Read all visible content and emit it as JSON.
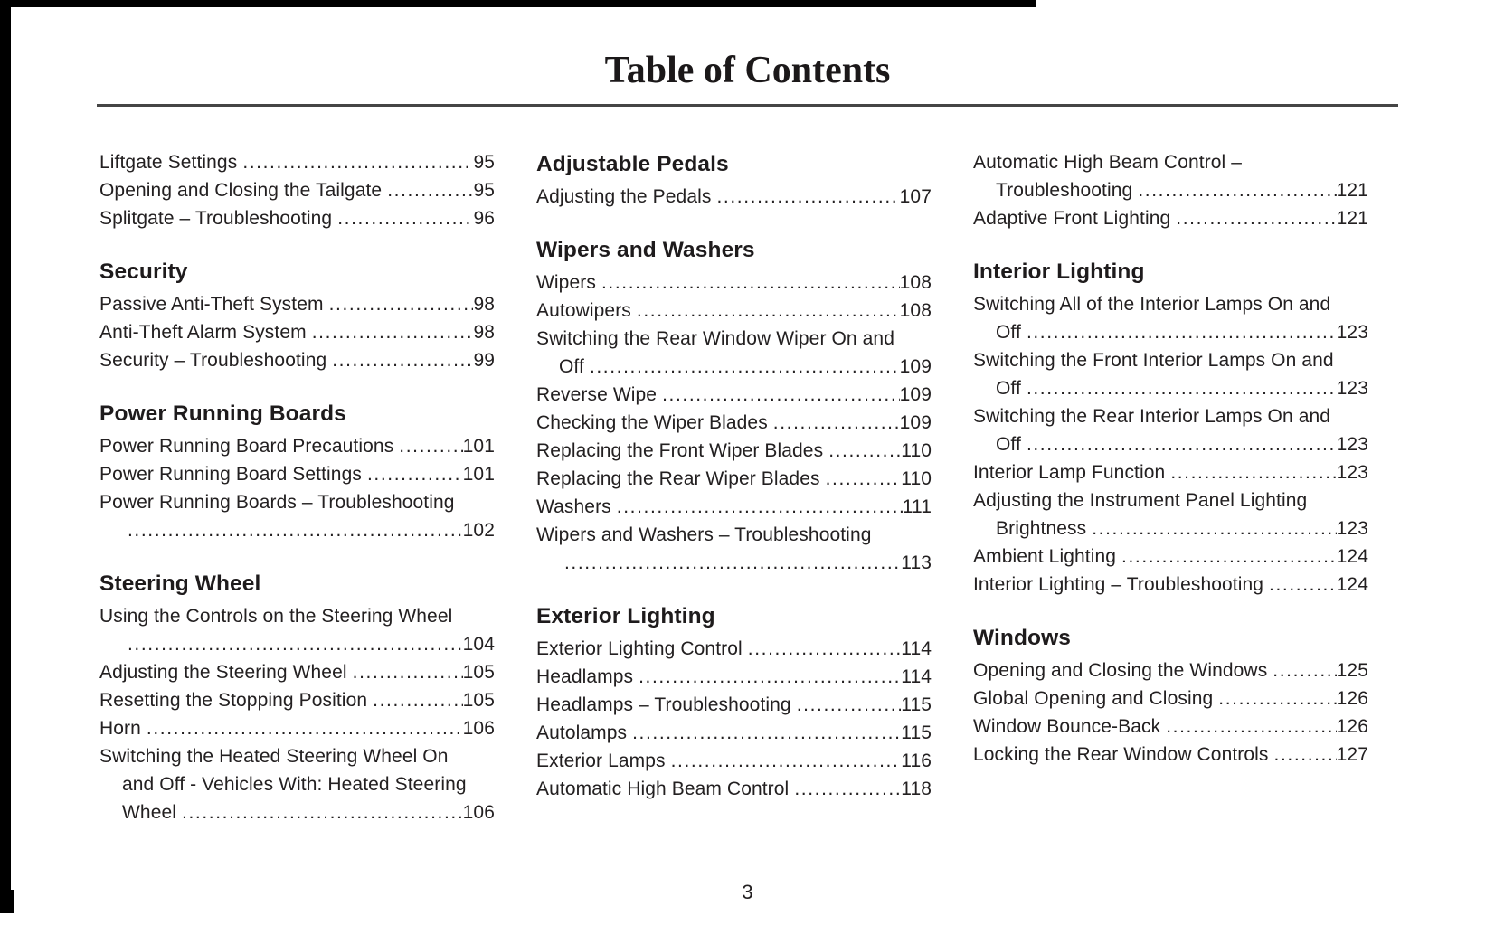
{
  "page": {
    "title": "Table of Contents",
    "page_number": "3"
  },
  "columns": [
    {
      "blocks": [
        {
          "heading": null,
          "rows": [
            {
              "t": "Liftgate Settings",
              "p": "95"
            },
            {
              "t": "Opening and Closing the Tailgate",
              "p": "95"
            },
            {
              "t": "Splitgate – Troubleshooting",
              "p": "96"
            }
          ]
        },
        {
          "heading": "Security",
          "rows": [
            {
              "t": "Passive Anti-Theft System",
              "p": "98"
            },
            {
              "t": "Anti-Theft Alarm System",
              "p": "98"
            },
            {
              "t": "Security – Troubleshooting",
              "p": "99"
            }
          ]
        },
        {
          "heading": "Power Running Boards",
          "rows": [
            {
              "t": "Power Running Board Precautions",
              "p": "101"
            },
            {
              "t": "Power Running Board Settings",
              "p": "101"
            },
            {
              "t": "Power Running Boards – Troubleshooting"
            },
            {
              "t": "",
              "p": "102",
              "i": true
            }
          ]
        },
        {
          "heading": "Steering Wheel",
          "rows": [
            {
              "t": "Using the Controls on the Steering Wheel"
            },
            {
              "t": "",
              "p": "104",
              "i": true
            },
            {
              "t": "Adjusting the Steering Wheel",
              "p": "105"
            },
            {
              "t": "Resetting the Stopping Position",
              "p": "105"
            },
            {
              "t": "Horn",
              "p": "106"
            },
            {
              "t": "Switching the Heated Steering Wheel On"
            },
            {
              "t": "and Off - Vehicles With: Heated Steering",
              "i": true
            },
            {
              "t": "Wheel",
              "p": "106",
              "i": true
            }
          ]
        }
      ]
    },
    {
      "blocks": [
        {
          "heading": "Adjustable Pedals",
          "rows": [
            {
              "t": "Adjusting the Pedals",
              "p": "107"
            }
          ]
        },
        {
          "heading": "Wipers and Washers",
          "rows": [
            {
              "t": "Wipers",
              "p": "108"
            },
            {
              "t": "Autowipers",
              "p": "108"
            },
            {
              "t": "Switching the Rear Window Wiper On and"
            },
            {
              "t": "Off",
              "p": "109",
              "i": true
            },
            {
              "t": "Reverse Wipe",
              "p": "109"
            },
            {
              "t": "Checking the Wiper Blades",
              "p": "109"
            },
            {
              "t": "Replacing the Front Wiper Blades",
              "p": "110"
            },
            {
              "t": "Replacing the Rear Wiper Blades",
              "p": "110"
            },
            {
              "t": "Washers",
              "p": "111"
            },
            {
              "t": "Wipers and Washers – Troubleshooting"
            },
            {
              "t": "",
              "p": "113",
              "i": true
            }
          ]
        },
        {
          "heading": "Exterior Lighting",
          "rows": [
            {
              "t": "Exterior Lighting Control",
              "p": "114"
            },
            {
              "t": "Headlamps",
              "p": "114"
            },
            {
              "t": "Headlamps – Troubleshooting",
              "p": "115"
            },
            {
              "t": "Autolamps",
              "p": "115"
            },
            {
              "t": "Exterior Lamps",
              "p": "116"
            },
            {
              "t": "Automatic High Beam Control",
              "p": "118"
            }
          ]
        }
      ]
    },
    {
      "blocks": [
        {
          "heading": null,
          "rows": [
            {
              "t": "Automatic High Beam Control –"
            },
            {
              "t": "Troubleshooting",
              "p": "121",
              "i": true
            },
            {
              "t": "Adaptive Front Lighting",
              "p": "121"
            }
          ]
        },
        {
          "heading": "Interior Lighting",
          "rows": [
            {
              "t": "Switching All of the Interior Lamps On and"
            },
            {
              "t": "Off",
              "p": "123",
              "i": true
            },
            {
              "t": "Switching the Front Interior Lamps On and"
            },
            {
              "t": "Off",
              "p": "123",
              "i": true
            },
            {
              "t": "Switching the Rear Interior Lamps On and"
            },
            {
              "t": "Off",
              "p": "123",
              "i": true
            },
            {
              "t": "Interior Lamp Function",
              "p": "123"
            },
            {
              "t": "Adjusting the Instrument Panel Lighting"
            },
            {
              "t": "Brightness",
              "p": "123",
              "i": true
            },
            {
              "t": "Ambient Lighting",
              "p": "124"
            },
            {
              "t": "Interior Lighting – Troubleshooting",
              "p": "124"
            }
          ]
        },
        {
          "heading": "Windows",
          "rows": [
            {
              "t": "Opening and Closing the Windows",
              "p": "125"
            },
            {
              "t": "Global Opening and Closing",
              "p": "126"
            },
            {
              "t": "Window Bounce-Back",
              "p": "126"
            },
            {
              "t": "Locking the Rear Window Controls",
              "p": "127"
            }
          ]
        }
      ]
    }
  ]
}
